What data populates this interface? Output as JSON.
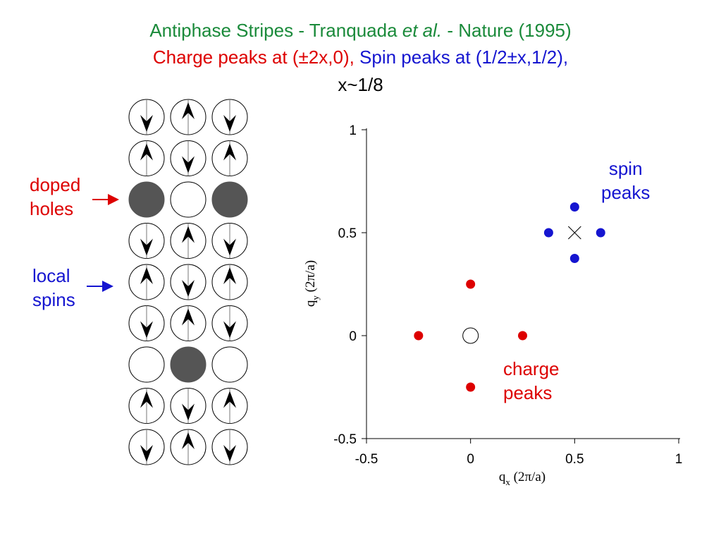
{
  "title": {
    "line1_text": "Antiphase Stripes - Tranquada ",
    "line1_italic": "et al.",
    "line1_tail": " - Nature (1995)",
    "line2_charge": "Charge peaks at (±2x,0), ",
    "line2_spin": "Spin peaks at (1/2±x,1/2),",
    "line3": "x~1/8"
  },
  "lattice_labels": {
    "doped_line1": "doped",
    "doped_line2": "holes",
    "local_line1": "local",
    "local_line2": "spins"
  },
  "lattice": {
    "columns": 3,
    "rows": [
      [
        "down",
        "up",
        "down"
      ],
      [
        "up",
        "down",
        "up"
      ],
      [
        "hole",
        "empty",
        "hole"
      ],
      [
        "down",
        "up",
        "down"
      ],
      [
        "up",
        "down",
        "up"
      ],
      [
        "down",
        "up",
        "down"
      ],
      [
        "empty",
        "hole",
        "empty"
      ],
      [
        "up",
        "down",
        "up"
      ],
      [
        "down",
        "up",
        "down"
      ]
    ]
  },
  "plot_labels": {
    "spin_line1": "spin",
    "spin_line2": "peaks",
    "charge_line1": "charge",
    "charge_line2": "peaks"
  },
  "colors": {
    "title_green": "#1a8a3a",
    "charge_red": "#dd0000",
    "spin_blue": "#1515d0",
    "hole_gray": "#555555"
  },
  "chart_data": {
    "type": "scatter",
    "title": "",
    "xlabel": "q",
    "xlabel_sub": "x",
    "xlabel_units": "(2π/a)",
    "ylabel": "q",
    "ylabel_sub": "y",
    "ylabel_units": "(2π/a)",
    "xlim": [
      -0.5,
      1
    ],
    "ylim": [
      -0.5,
      1
    ],
    "xticks": [
      -0.5,
      0,
      0.5,
      1
    ],
    "xtick_labels": [
      "-0.5",
      "0",
      "0.5",
      "1"
    ],
    "yticks": [
      -0.5,
      0,
      0.5,
      1
    ],
    "ytick_labels": [
      "-0.5",
      "0",
      "0.5",
      "1"
    ],
    "grid": false,
    "series": [
      {
        "name": "charge peaks",
        "color": "#dd0000",
        "marker": "filled-circle",
        "points": [
          [
            -0.25,
            0
          ],
          [
            0.25,
            0
          ],
          [
            0,
            0.25
          ],
          [
            0,
            -0.25
          ]
        ]
      },
      {
        "name": "spin peaks",
        "color": "#1515d0",
        "marker": "filled-circle",
        "points": [
          [
            0.375,
            0.5
          ],
          [
            0.625,
            0.5
          ],
          [
            0.5,
            0.625
          ],
          [
            0.5,
            0.375
          ]
        ]
      }
    ],
    "markers": [
      {
        "type": "open-circle",
        "point": [
          0,
          0
        ]
      },
      {
        "type": "cross",
        "point": [
          0.5,
          0.5
        ]
      }
    ]
  }
}
